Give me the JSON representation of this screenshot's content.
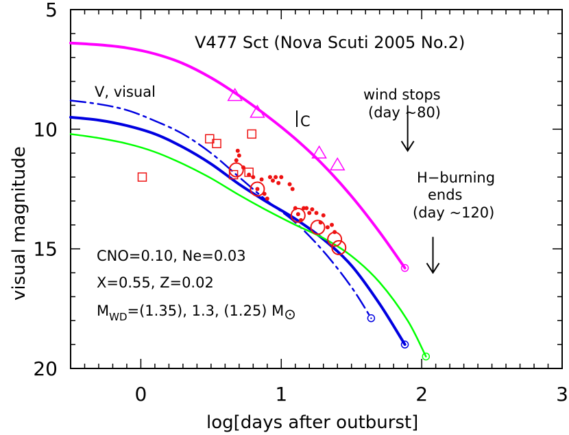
{
  "chart_data": {
    "type": "scatter",
    "title": "V477 Sct (Nova Scuti 2005 No.2)",
    "xlabel": "log[days after outburst]",
    "ylabel": "visual magnitude",
    "xlim": [
      -0.5,
      3.0
    ],
    "ylim": [
      20,
      5
    ],
    "y_inverted": true,
    "grid": false,
    "x_ticks": [
      "0",
      "1",
      "2",
      "3"
    ],
    "y_ticks": [
      "5",
      "10",
      "15",
      "20"
    ],
    "annotations": {
      "curve_label": "V, visual",
      "c_marker": "C",
      "wind_line1": "wind stops",
      "wind_line2": "(day ~80)",
      "hburn_line1": "H−burning",
      "hburn_line2": "ends",
      "hburn_line3": "(day ~120)",
      "params_line1": "CNO=0.10, Ne=0.03",
      "params_line2": "X=0.55, Z=0.02",
      "mwd_prefix": "M",
      "mwd_sub": "WD",
      "mwd_values": "=(1.35), 1.3, (1.25) M",
      "sun_symbol": "⊙"
    },
    "colors": {
      "magenta": "#ff00ff",
      "blue": "#0000e0",
      "green": "#00ff00",
      "red": "#ee1111",
      "black": "#000000"
    },
    "series": [
      {
        "style": "magenta-curve",
        "x": [
          -0.5,
          -0.3,
          -0.1,
          0.1,
          0.3,
          0.5,
          0.7,
          0.9,
          1.1,
          1.3,
          1.5,
          1.7,
          1.88
        ],
        "y": [
          6.4,
          6.47,
          6.6,
          6.85,
          7.25,
          7.85,
          8.6,
          9.45,
          10.4,
          11.5,
          12.8,
          14.3,
          15.8
        ],
        "end_marker": [
          1.88,
          15.8
        ]
      },
      {
        "style": "blue-dashdot",
        "x": [
          -0.5,
          -0.3,
          -0.1,
          0.1,
          0.3,
          0.5,
          0.7,
          0.9,
          1.1,
          1.3,
          1.5,
          1.64
        ],
        "y": [
          8.8,
          8.95,
          9.2,
          9.65,
          10.2,
          11.0,
          12.0,
          13.0,
          13.9,
          15.1,
          16.6,
          17.9
        ],
        "end_marker": [
          1.64,
          17.9
        ]
      },
      {
        "style": "blue-solid",
        "x": [
          -0.5,
          -0.3,
          -0.1,
          0.1,
          0.3,
          0.5,
          0.7,
          0.9,
          1.1,
          1.3,
          1.5,
          1.7,
          1.88
        ],
        "y": [
          9.5,
          9.62,
          9.85,
          10.2,
          10.75,
          11.45,
          12.3,
          13.05,
          13.75,
          14.6,
          15.7,
          17.3,
          19.0
        ],
        "end_marker": [
          1.88,
          19.0
        ]
      },
      {
        "style": "green-curve",
        "x": [
          -0.5,
          -0.3,
          -0.1,
          0.1,
          0.3,
          0.5,
          0.7,
          0.9,
          1.1,
          1.3,
          1.5,
          1.7,
          1.9,
          2.03
        ],
        "y": [
          10.2,
          10.37,
          10.6,
          10.95,
          11.45,
          12.05,
          12.75,
          13.4,
          14.0,
          14.55,
          15.3,
          16.4,
          18.0,
          19.5
        ],
        "end_marker": [
          2.03,
          19.5
        ]
      },
      {
        "style": "open-triangles",
        "x": [
          0.67,
          0.83,
          1.27,
          1.4
        ],
        "y": [
          8.6,
          9.3,
          11.0,
          11.5
        ]
      },
      {
        "style": "open-squares",
        "x": [
          0.01,
          0.49,
          0.54,
          0.66,
          0.77,
          0.79
        ],
        "y": [
          12.0,
          10.4,
          10.6,
          11.9,
          11.8,
          10.2
        ]
      },
      {
        "style": "open-circles",
        "x": [
          0.68,
          0.83,
          1.12,
          1.26,
          1.38,
          1.41
        ],
        "y": [
          11.7,
          12.5,
          13.6,
          14.1,
          14.6,
          14.95
        ]
      },
      {
        "style": "filled-dots",
        "x": [
          0.68,
          0.69,
          0.7,
          0.73,
          0.77,
          0.8,
          0.83,
          0.86,
          0.88,
          0.9,
          0.92,
          0.94,
          0.96,
          0.98,
          1.0,
          1.06,
          1.08,
          1.1,
          1.12,
          1.14,
          1.16,
          1.18,
          1.2,
          1.22,
          1.25,
          1.28,
          1.3,
          1.33,
          1.36,
          1.38
        ],
        "y": [
          11.3,
          10.9,
          11.1,
          11.6,
          11.9,
          12.0,
          12.5,
          12.1,
          12.7,
          12.9,
          12.0,
          12.15,
          12.0,
          12.25,
          12.0,
          12.3,
          12.5,
          13.3,
          13.55,
          13.8,
          13.3,
          13.3,
          13.5,
          13.35,
          13.5,
          13.9,
          13.6,
          14.1,
          14.0,
          14.3
        ]
      }
    ],
    "arrows": [
      {
        "label": "wind stops",
        "x": 1.9,
        "y_from": 9.0,
        "y_to": 10.9
      },
      {
        "label": "H-burning ends",
        "x": 2.08,
        "y_from": 14.5,
        "y_to": 16.0
      }
    ]
  }
}
